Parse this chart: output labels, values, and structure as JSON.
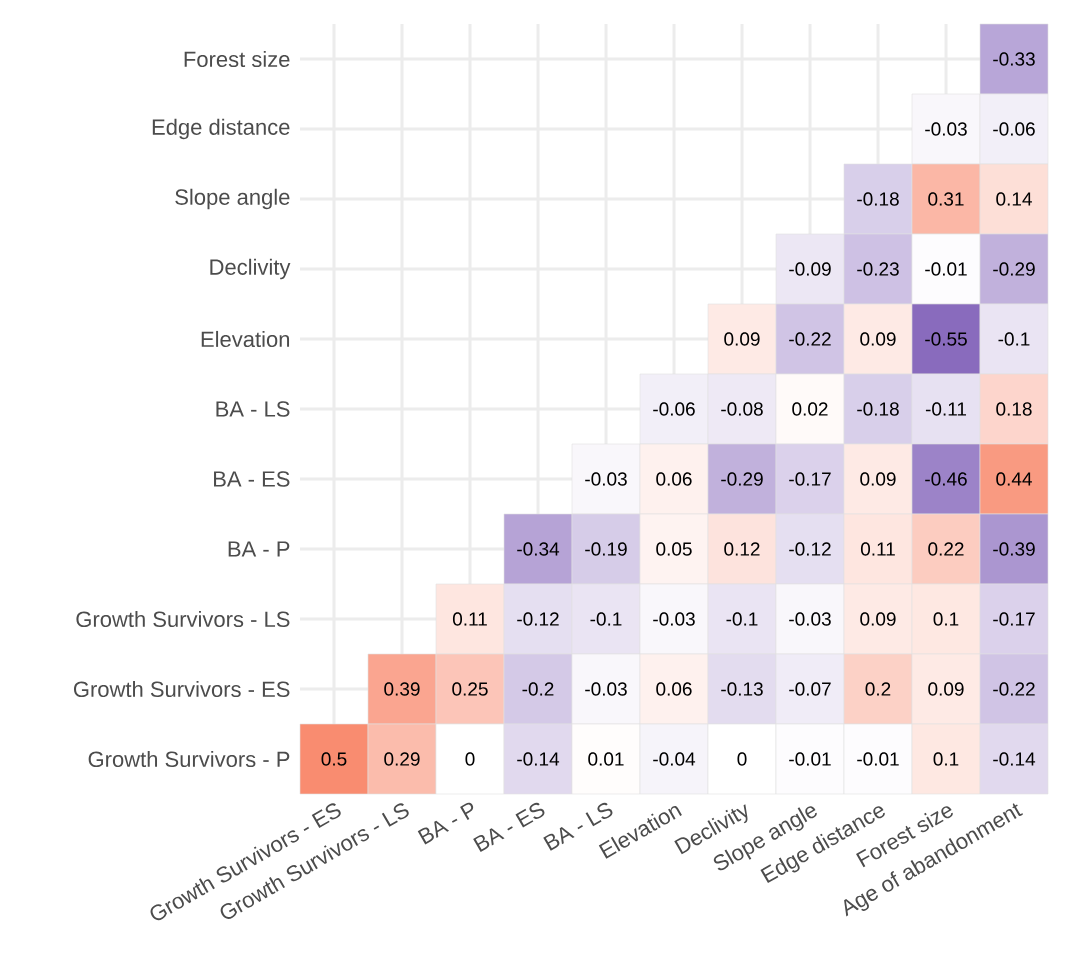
{
  "chart_data": {
    "type": "heatmap",
    "categories": [
      "Growth Survivors - ES",
      "Growth Survivors - LS",
      "BA - P",
      "BA - ES",
      "BA - LS",
      "Elevation",
      "Declivity",
      "Slope angle",
      "Edge distance",
      "Forest size",
      "Age of abandonment"
    ],
    "y_categories": [
      "Forest size",
      "Edge distance",
      "Slope angle",
      "Declivity",
      "Elevation",
      "BA - LS",
      "BA - ES",
      "BA - P",
      "Growth Survivors - LS",
      "Growth Survivors - ES",
      "Growth Survivors - P"
    ],
    "cells": [
      [
        null,
        null,
        null,
        null,
        null,
        null,
        null,
        null,
        null,
        null,
        -0.33
      ],
      [
        null,
        null,
        null,
        null,
        null,
        null,
        null,
        null,
        null,
        -0.03,
        -0.06
      ],
      [
        null,
        null,
        null,
        null,
        null,
        null,
        null,
        null,
        -0.18,
        0.31,
        0.14
      ],
      [
        null,
        null,
        null,
        null,
        null,
        null,
        null,
        -0.09,
        -0.23,
        -0.01,
        -0.29
      ],
      [
        null,
        null,
        null,
        null,
        null,
        null,
        0.09,
        -0.22,
        0.09,
        -0.55,
        -0.1
      ],
      [
        null,
        null,
        null,
        null,
        null,
        -0.06,
        -0.08,
        0.02,
        -0.18,
        -0.11,
        0.18
      ],
      [
        null,
        null,
        null,
        null,
        -0.03,
        0.06,
        -0.29,
        -0.17,
        0.09,
        -0.46,
        0.44
      ],
      [
        null,
        null,
        null,
        -0.34,
        -0.19,
        0.05,
        0.12,
        -0.12,
        0.11,
        0.22,
        -0.39
      ],
      [
        null,
        null,
        0.11,
        -0.12,
        -0.1,
        -0.03,
        -0.1,
        -0.03,
        0.09,
        0.1,
        -0.17
      ],
      [
        null,
        0.39,
        0.25,
        -0.2,
        -0.03,
        0.06,
        -0.13,
        -0.07,
        0.2,
        0.09,
        -0.22
      ],
      [
        0.5,
        0.29,
        0,
        -0.14,
        0.01,
        -0.04,
        0,
        -0.01,
        -0.01,
        0.1,
        -0.14
      ]
    ],
    "data_labels": true,
    "grid": true
  }
}
